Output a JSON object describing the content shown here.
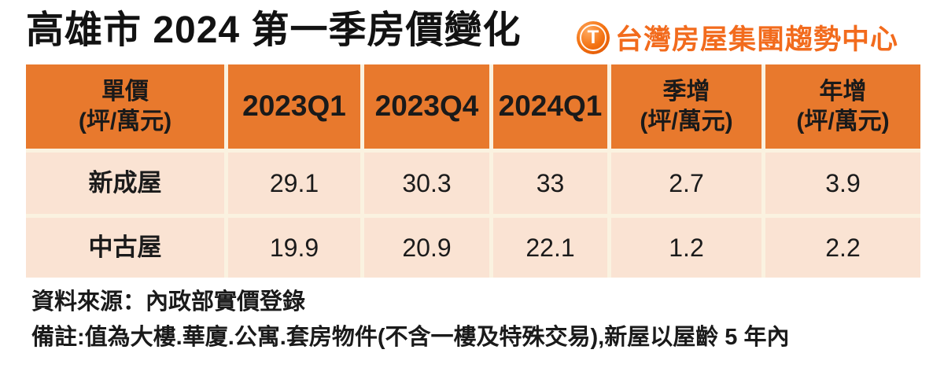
{
  "header": {
    "title": "高雄市 2024 第一季房價變化",
    "logo_letter": "T",
    "logo_text": "台灣房屋集團趨勢中心"
  },
  "table": {
    "header": [
      {
        "line1": "單價",
        "line2": "(坪/萬元)"
      },
      {
        "line1": "2023Q1",
        "line2": ""
      },
      {
        "line1": "2023Q4",
        "line2": ""
      },
      {
        "line1": "2024Q1",
        "line2": ""
      },
      {
        "line1": "季增",
        "line2": "(坪/萬元)"
      },
      {
        "line1": "年增",
        "line2": "(坪/萬元)"
      }
    ],
    "rows": [
      {
        "label": "新成屋",
        "values": [
          "29.1",
          "30.3",
          "33",
          "2.7",
          "3.9"
        ]
      },
      {
        "label": "中古屋",
        "values": [
          "19.9",
          "20.9",
          "22.1",
          "1.2",
          "2.2"
        ]
      }
    ]
  },
  "chart_data": {
    "type": "table",
    "title": "高雄市 2024 第一季房價變化",
    "unit": "坪/萬元",
    "columns": [
      "單價(坪/萬元)",
      "2023Q1",
      "2023Q4",
      "2024Q1",
      "季增(坪/萬元)",
      "年增(坪/萬元)"
    ],
    "rows": [
      {
        "category": "新成屋",
        "2023Q1": 29.1,
        "2023Q4": 30.3,
        "2024Q1": 33,
        "季增": 2.7,
        "年增": 3.9
      },
      {
        "category": "中古屋",
        "2023Q1": 19.9,
        "2023Q4": 20.9,
        "2024Q1": 22.1,
        "季增": 1.2,
        "年增": 2.2
      }
    ]
  },
  "footer": {
    "source": "資料來源：內政部實價登錄",
    "note": "備註:值為大樓.華廈.公寓.套房物件(不含一樓及特殊交易),新屋以屋齡 5 年內"
  },
  "colors": {
    "header_bg": "#E8792D",
    "row_bg": "#FAE3D3",
    "divider": "#FAF2E0",
    "logo_orange": "#F26B1D",
    "title_text": "#121212"
  }
}
